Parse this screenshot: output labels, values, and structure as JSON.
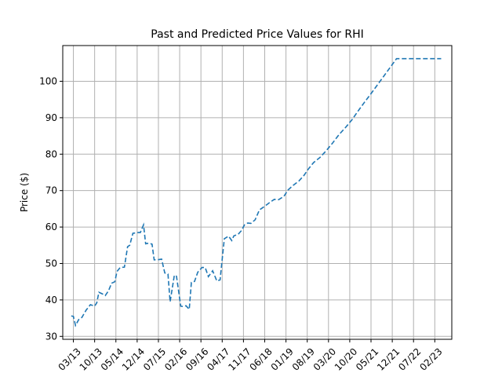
{
  "chart_data": {
    "type": "line",
    "title": "Past and Predicted Price Values for RHI",
    "xlabel": "",
    "ylabel": "Price ($)",
    "x_tick_labels": [
      "03/13",
      "10/13",
      "05/14",
      "12/14",
      "07/15",
      "02/16",
      "09/16",
      "04/17",
      "11/17",
      "06/18",
      "01/19",
      "08/19",
      "03/20",
      "10/20",
      "05/21",
      "12/21",
      "07/22",
      "02/23"
    ],
    "y_ticks": [
      30,
      40,
      50,
      60,
      70,
      80,
      90,
      100
    ],
    "xlim": [
      -0.5,
      17.8
    ],
    "ylim": [
      29.2,
      109.8
    ],
    "grid": true,
    "line_color": "#1f77b4",
    "line_style": "dashed",
    "series": [
      {
        "x": [
          -0.1,
          0.0,
          0.1,
          0.25,
          0.4,
          0.6,
          0.8,
          1.0,
          1.1,
          1.2,
          1.35,
          1.5,
          1.65,
          1.8,
          1.95,
          2.05,
          2.2,
          2.4,
          2.55,
          2.65,
          2.8,
          2.95,
          3.0,
          3.15,
          3.3,
          3.4,
          3.55,
          3.7,
          3.8,
          3.95,
          4.15,
          4.3,
          4.45,
          4.55,
          4.75,
          4.85,
          4.95,
          5.05,
          5.15,
          5.3,
          5.45,
          5.55,
          5.7,
          5.85,
          6.05,
          6.2,
          6.35,
          6.55,
          6.75,
          6.9,
          7.1,
          7.3,
          7.45,
          7.55,
          7.75,
          7.9,
          8.05,
          8.2,
          8.35,
          8.55,
          8.75,
          9.0,
          9.2,
          9.45,
          9.65,
          9.9,
          10.1,
          10.35,
          10.6,
          10.85,
          11.05,
          11.3,
          11.6,
          11.9,
          12.2,
          12.5,
          12.8,
          13.1,
          13.4,
          13.7,
          14.0,
          14.3,
          14.6,
          14.9,
          15.2,
          15.5,
          15.8,
          16.1,
          16.4,
          16.7,
          17.0,
          17.3
        ],
        "y": [
          35.6,
          35.5,
          33.0,
          34.6,
          35.2,
          37.2,
          38.7,
          38.3,
          39.2,
          42.1,
          41.7,
          41.2,
          42.5,
          44.6,
          45.0,
          47.8,
          48.9,
          49.0,
          54.6,
          55.0,
          58.3,
          58.4,
          58.5,
          58.5,
          60.6,
          55.4,
          55.6,
          55.3,
          51.0,
          51.0,
          51.2,
          47.4,
          47.1,
          39.5,
          46.8,
          46.5,
          42.4,
          38.3,
          38.2,
          38.4,
          37.4,
          44.8,
          45.1,
          47.6,
          48.9,
          48.9,
          46.4,
          48.0,
          45.2,
          45.5,
          56.8,
          57.5,
          56.3,
          57.6,
          58.0,
          59.0,
          60.6,
          61.1,
          61.0,
          62.0,
          64.7,
          65.7,
          66.6,
          67.6,
          67.5,
          68.4,
          70.2,
          71.5,
          72.6,
          74.2,
          75.9,
          77.7,
          79.1,
          81.0,
          83.1,
          85.4,
          87.3,
          89.4,
          91.9,
          94.3,
          96.6,
          99.0,
          101.4,
          103.8,
          106.2,
          106.2,
          106.2,
          106.2,
          106.2,
          106.2,
          106.2,
          106.2
        ]
      }
    ]
  }
}
